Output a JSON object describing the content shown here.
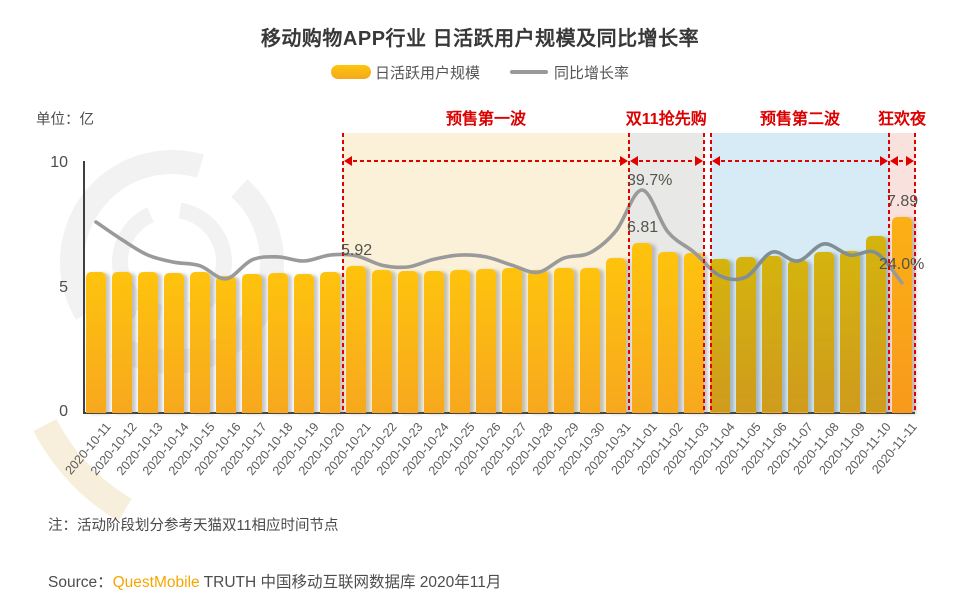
{
  "title": "移动购物APP行业 日活跃用户规模及同比增长率",
  "legend": [
    {
      "label": "日活跃用户规模",
      "type": "bar",
      "color": "#FBC10E"
    },
    {
      "label": "同比增长率",
      "type": "line",
      "color": "#9A9A9A"
    }
  ],
  "unit_label": "单位：亿",
  "y_axis": {
    "ticks": [
      "10",
      "5",
      "0"
    ],
    "min": 0,
    "max": 10
  },
  "phases": [
    {
      "label": "预售第一波",
      "start": "2020-10-21",
      "end": "2020-10-31",
      "fill": "#FAF1D8"
    },
    {
      "label": "双11抢先购",
      "start": "2020-11-01",
      "end": "2020-11-03",
      "fill": "#E8E8E7"
    },
    {
      "label": "预售第二波",
      "start": "2020-11-04",
      "end": "2020-11-10",
      "fill": "#D6EBF5"
    },
    {
      "label": "狂欢夜",
      "start": "2020-11-11",
      "end": "2020-11-11",
      "fill": "#F9E1DD"
    }
  ],
  "note": "注：活动阶段划分参考天猫双11相应时间节点",
  "source": {
    "prefix": "Source：",
    "brand": "QuestMobile",
    "suffix": " TRUTH 中国移动互联网数据库 2020年11月"
  },
  "colors": {
    "bar_top": "#FEC30D",
    "bar_bottom": "#F7A81E",
    "bar_highlight_top": "#FBB014",
    "bar_highlight_bottom": "#F8991D",
    "line": "#9A9A9A",
    "phase_red": "#DC0000",
    "axis": "#3F3F3F",
    "brand_orange": "#F7A600"
  },
  "chart_data": {
    "type": "bar+line",
    "categories": [
      "2020-10-11",
      "2020-10-12",
      "2020-10-13",
      "2020-10-14",
      "2020-10-15",
      "2020-10-16",
      "2020-10-17",
      "2020-10-18",
      "2020-10-19",
      "2020-10-20",
      "2020-10-21",
      "2020-10-22",
      "2020-10-23",
      "2020-10-24",
      "2020-10-25",
      "2020-10-26",
      "2020-10-27",
      "2020-10-28",
      "2020-10-29",
      "2020-10-30",
      "2020-10-31",
      "2020-11-01",
      "2020-11-02",
      "2020-11-03",
      "2020-11-04",
      "2020-11-05",
      "2020-11-06",
      "2020-11-07",
      "2020-11-08",
      "2020-11-09",
      "2020-11-10",
      "2020-11-11"
    ],
    "series": [
      {
        "name": "日活跃用户规模",
        "type": "bar",
        "unit": "亿",
        "values": [
          5.68,
          5.66,
          5.66,
          5.64,
          5.66,
          5.52,
          5.57,
          5.62,
          5.6,
          5.65,
          5.92,
          5.76,
          5.72,
          5.72,
          5.76,
          5.8,
          5.84,
          5.76,
          5.82,
          5.84,
          6.24,
          6.81,
          6.46,
          6.44,
          6.2,
          6.28,
          6.32,
          6.16,
          6.48,
          6.52,
          7.12,
          7.89
        ]
      },
      {
        "name": "同比增长率",
        "type": "line",
        "unit": "%",
        "values_estimated": [
          34.3,
          31.3,
          28.7,
          27.5,
          26.9,
          24.7,
          27.9,
          28.4,
          27.7,
          28.7,
          28.6,
          27.0,
          26.7,
          28.0,
          28.7,
          28.4,
          27.0,
          25.8,
          28.2,
          29.1,
          32.8,
          39.7,
          32.6,
          29.2,
          25.2,
          25.0,
          29.2,
          27.7,
          30.6,
          28.7,
          29.1,
          24.0
        ],
        "labeled_points": {
          "2020-11-01": "39.7%",
          "2020-11-11": "24.0%"
        }
      }
    ],
    "bar_value_labels": {
      "2020-10-21": "5.92",
      "2020-11-01": "6.81",
      "2020-11-11": "7.89"
    },
    "ylim": [
      0,
      10
    ],
    "legend_position": "top",
    "grid": false
  }
}
